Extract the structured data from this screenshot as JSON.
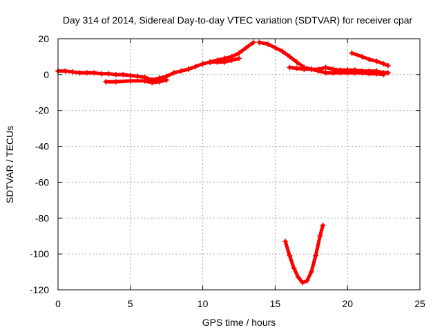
{
  "chart_data": {
    "type": "scatter",
    "title": "Day 314 of 2014, Sidereal Day-to-day VTEC variation (SDTVAR) for receiver cpar",
    "xlabel": "GPS time / hours",
    "ylabel": "SDTVAR / TECUs",
    "xlim": [
      0,
      25
    ],
    "ylim": [
      -120,
      20
    ],
    "xticks": [
      0,
      5,
      10,
      15,
      20,
      25
    ],
    "yticks": [
      -120,
      -100,
      -80,
      -60,
      -40,
      -20,
      0,
      20
    ],
    "grid": true,
    "color": "#ff0000",
    "series": [
      {
        "x": [
          0.0,
          0.5,
          1.0,
          1.5,
          2.0,
          2.5,
          3.0,
          3.5,
          4.0,
          4.5,
          5.0,
          5.5,
          6.0,
          6.5,
          7.0,
          7.5,
          8.0,
          8.5,
          9.0,
          9.5,
          10.0,
          10.5,
          11.0,
          11.5,
          12.0,
          12.5,
          13.0,
          13.5
        ],
        "y": [
          2,
          2,
          1.5,
          1,
          1,
          1,
          0.5,
          0.5,
          0,
          0,
          -0.5,
          -1,
          -1.5,
          -3,
          -2,
          -1,
          1,
          2,
          3,
          4.5,
          6,
          7,
          8,
          9,
          10,
          12,
          15,
          18
        ]
      },
      {
        "x": [
          3.3,
          4.0,
          5.0,
          6.0,
          6.5,
          7.0,
          7.5
        ],
        "y": [
          -4,
          -4,
          -3.5,
          -3.5,
          -4.5,
          -4,
          -3
        ]
      },
      {
        "x": [
          10.5,
          11.0,
          11.5,
          12.0,
          12.5
        ],
        "y": [
          7,
          7,
          7,
          8,
          9
        ]
      },
      {
        "x": [
          13.9,
          14.5,
          15.0,
          15.5,
          16.0,
          16.5,
          17.0,
          17.5,
          18.0,
          18.5,
          19.0,
          19.5,
          20.0,
          20.5,
          21.0,
          21.5,
          22.0,
          22.5,
          22.8
        ],
        "y": [
          18,
          17,
          15,
          13,
          10,
          7,
          4,
          3,
          3,
          4,
          3,
          2.5,
          2.5,
          2.5,
          2,
          2,
          2,
          1,
          1
        ]
      },
      {
        "x": [
          16.0,
          16.5,
          17.0,
          17.5,
          18.0,
          18.5,
          19.0,
          19.5,
          20.0,
          20.5,
          21.0,
          21.5,
          22.0,
          22.5
        ],
        "y": [
          4,
          3.5,
          3,
          3,
          2,
          1,
          1,
          1,
          1,
          1,
          1,
          0.5,
          0.5,
          0
        ]
      },
      {
        "x": [
          20.3,
          21.0,
          21.5,
          22.0,
          22.5,
          22.8
        ],
        "y": [
          12,
          10,
          8.5,
          7.5,
          6,
          5
        ]
      },
      {
        "x": [
          15.7,
          16.0,
          16.3,
          16.6,
          16.9,
          17.2,
          17.5,
          17.8,
          18.1,
          18.3
        ],
        "y": [
          -93,
          -101,
          -108,
          -113,
          -116,
          -115,
          -110,
          -101,
          -90,
          -84
        ]
      }
    ]
  }
}
